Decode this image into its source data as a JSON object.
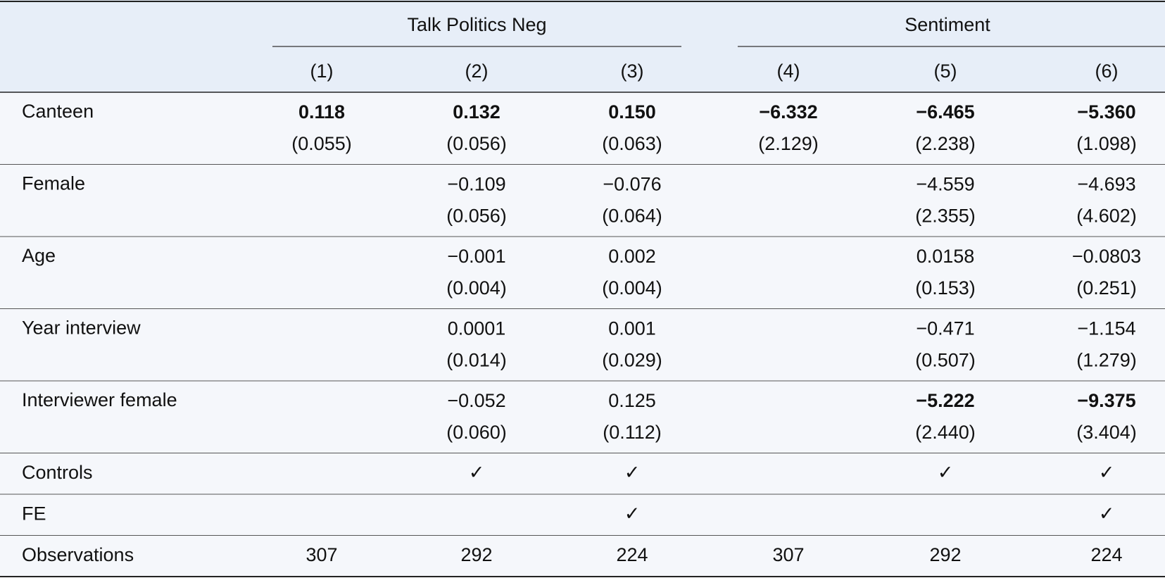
{
  "table": {
    "groups": [
      {
        "label": "Talk Politics Neg",
        "span": 3
      },
      {
        "label": "Sentiment",
        "span": 3
      }
    ],
    "columns": [
      "(1)",
      "(2)",
      "(3)",
      "(4)",
      "(5)",
      "(6)"
    ],
    "rows": [
      {
        "label": "Canteen",
        "coef": [
          "0.118",
          "0.132",
          "0.150",
          "−6.332",
          "−6.465",
          "−5.360"
        ],
        "se": [
          "(0.055)",
          "(0.056)",
          "(0.063)",
          "(2.129)",
          "(2.238)",
          "(1.098)"
        ],
        "bold": [
          true,
          true,
          true,
          true,
          true,
          true
        ]
      },
      {
        "label": "Female",
        "coef": [
          null,
          "−0.109",
          "−0.076",
          null,
          "−4.559",
          "−4.693"
        ],
        "se": [
          null,
          "(0.056)",
          "(0.064)",
          null,
          "(2.355)",
          "(4.602)"
        ],
        "bold": [
          false,
          false,
          false,
          false,
          false,
          false
        ]
      },
      {
        "label": "Age",
        "coef": [
          null,
          "−0.001",
          "0.002",
          null,
          "0.0158",
          "−0.0803"
        ],
        "se": [
          null,
          "(0.004)",
          "(0.004)",
          null,
          "(0.153)",
          "(0.251)"
        ],
        "bold": [
          false,
          false,
          false,
          false,
          false,
          false
        ]
      },
      {
        "label": "Year interview",
        "coef": [
          null,
          "0.0001",
          "0.001",
          null,
          "−0.471",
          "−1.154"
        ],
        "se": [
          null,
          "(0.014)",
          "(0.029)",
          null,
          "(0.507)",
          "(1.279)"
        ],
        "bold": [
          false,
          false,
          false,
          false,
          false,
          false
        ]
      },
      {
        "label": "Interviewer female",
        "coef": [
          null,
          "−0.052",
          "0.125",
          null,
          "−5.222",
          "−9.375"
        ],
        "se": [
          null,
          "(0.060)",
          "(0.112)",
          null,
          "(2.440)",
          "(3.404)"
        ],
        "bold": [
          false,
          false,
          false,
          false,
          true,
          true
        ]
      }
    ],
    "footer_rows": [
      {
        "label": "Controls",
        "values": [
          null,
          "✓",
          "✓",
          null,
          "✓",
          "✓"
        ]
      },
      {
        "label": "FE",
        "values": [
          null,
          null,
          "✓",
          null,
          null,
          "✓"
        ]
      },
      {
        "label": "Observations",
        "values": [
          "307",
          "292",
          "224",
          "307",
          "292",
          "224"
        ]
      }
    ]
  }
}
